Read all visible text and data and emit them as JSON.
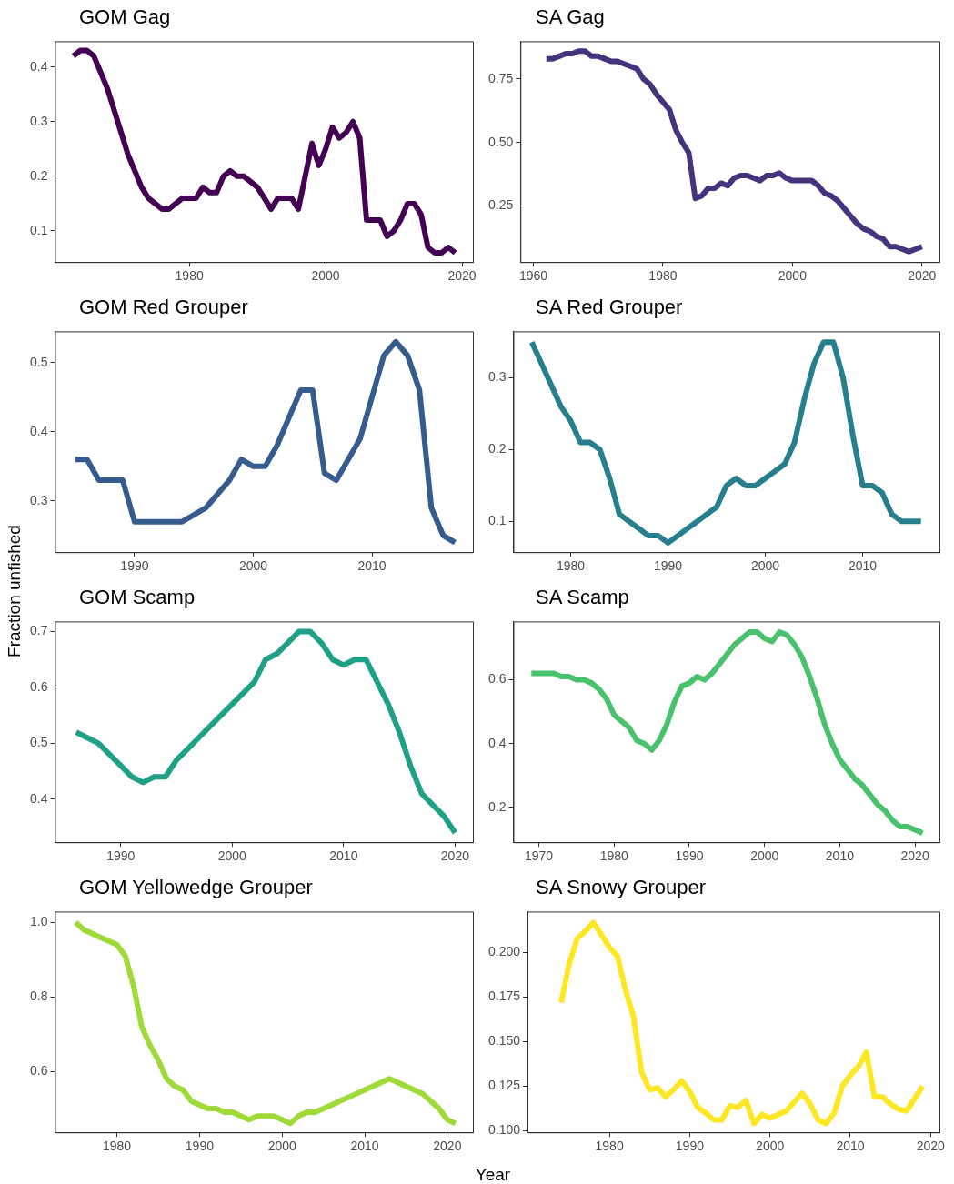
{
  "chart_data": [
    {
      "type": "line",
      "title": "GOM Gag",
      "x": [
        1963,
        1964,
        1965,
        1966,
        1967,
        1968,
        1969,
        1970,
        1971,
        1972,
        1973,
        1974,
        1975,
        1976,
        1977,
        1978,
        1979,
        1980,
        1981,
        1982,
        1983,
        1984,
        1985,
        1986,
        1987,
        1988,
        1989,
        1990,
        1991,
        1992,
        1993,
        1994,
        1995,
        1996,
        1997,
        1998,
        1999,
        2000,
        2001,
        2002,
        2003,
        2004,
        2005,
        2006,
        2007,
        2008,
        2009,
        2010,
        2011,
        2012,
        2013,
        2014,
        2015,
        2016,
        2017,
        2018,
        2019
      ],
      "series": [
        {
          "color": "#440154",
          "values": [
            0.42,
            0.43,
            0.43,
            0.42,
            0.39,
            0.36,
            0.32,
            0.28,
            0.24,
            0.21,
            0.18,
            0.16,
            0.15,
            0.14,
            0.14,
            0.15,
            0.16,
            0.16,
            0.16,
            0.18,
            0.17,
            0.17,
            0.2,
            0.21,
            0.2,
            0.2,
            0.19,
            0.18,
            0.16,
            0.14,
            0.16,
            0.16,
            0.16,
            0.14,
            0.2,
            0.26,
            0.22,
            0.25,
            0.29,
            0.27,
            0.28,
            0.3,
            0.27,
            0.12,
            0.12,
            0.12,
            0.09,
            0.1,
            0.12,
            0.15,
            0.15,
            0.13,
            0.07,
            0.06,
            0.06,
            0.07,
            0.06
          ]
        }
      ],
      "xlim": [
        1960.3,
        2021.6
      ],
      "xticks": [
        1980,
        2000,
        2020
      ],
      "ylim": [
        0.043,
        0.447
      ],
      "yticks": [
        0.1,
        0.2,
        0.3,
        0.4
      ],
      "grid": false,
      "legend": false
    },
    {
      "type": "line",
      "title": "SA Gag",
      "x": [
        1962,
        1963,
        1964,
        1965,
        1966,
        1967,
        1968,
        1969,
        1970,
        1971,
        1972,
        1973,
        1974,
        1975,
        1976,
        1977,
        1978,
        1979,
        1980,
        1981,
        1982,
        1983,
        1984,
        1985,
        1986,
        1987,
        1988,
        1989,
        1990,
        1991,
        1992,
        1993,
        1994,
        1995,
        1996,
        1997,
        1998,
        1999,
        2000,
        2001,
        2002,
        2003,
        2004,
        2005,
        2006,
        2007,
        2008,
        2009,
        2010,
        2011,
        2012,
        2013,
        2014,
        2015,
        2016,
        2017,
        2018,
        2019,
        2020
      ],
      "series": [
        {
          "color": "#46337e",
          "values": [
            0.83,
            0.83,
            0.84,
            0.85,
            0.85,
            0.86,
            0.86,
            0.84,
            0.84,
            0.83,
            0.82,
            0.82,
            0.81,
            0.8,
            0.79,
            0.75,
            0.73,
            0.69,
            0.66,
            0.63,
            0.55,
            0.5,
            0.46,
            0.28,
            0.29,
            0.32,
            0.32,
            0.34,
            0.33,
            0.36,
            0.37,
            0.37,
            0.36,
            0.35,
            0.37,
            0.37,
            0.38,
            0.36,
            0.35,
            0.35,
            0.35,
            0.35,
            0.33,
            0.3,
            0.29,
            0.27,
            0.24,
            0.21,
            0.18,
            0.16,
            0.15,
            0.13,
            0.12,
            0.09,
            0.09,
            0.08,
            0.07,
            0.08,
            0.09
          ]
        }
      ],
      "xlim": [
        1958,
        2022.7
      ],
      "xticks": [
        1960,
        1980,
        2000,
        2020
      ],
      "ylim": [
        0.029,
        0.899
      ],
      "yticks": [
        0.25,
        {
          "value": 0.5,
          "label": "0.50"
        },
        0.75
      ],
      "grid": false,
      "legend": false
    },
    {
      "type": "line",
      "title": "GOM Red Grouper",
      "x": [
        1985,
        1986,
        1987,
        1988,
        1989,
        1990,
        1991,
        1992,
        1993,
        1994,
        1995,
        1996,
        1997,
        1998,
        1999,
        2000,
        2001,
        2002,
        2003,
        2004,
        2005,
        2006,
        2007,
        2008,
        2009,
        2010,
        2011,
        2012,
        2013,
        2014,
        2015,
        2016,
        2017
      ],
      "series": [
        {
          "color": "#365c8d",
          "values": [
            0.36,
            0.36,
            0.33,
            0.33,
            0.33,
            0.27,
            0.27,
            0.27,
            0.27,
            0.27,
            0.28,
            0.29,
            0.31,
            0.33,
            0.36,
            0.35,
            0.35,
            0.38,
            0.42,
            0.46,
            0.46,
            0.34,
            0.33,
            0.36,
            0.39,
            0.45,
            0.51,
            0.53,
            0.51,
            0.46,
            0.29,
            0.25,
            0.24
          ]
        }
      ],
      "xlim": [
        1983.3,
        2018.5
      ],
      "xticks": [
        1990,
        2000,
        2010
      ],
      "ylim": [
        0.226,
        0.545
      ],
      "yticks": [
        0.3,
        0.4,
        0.5
      ],
      "grid": false,
      "legend": false
    },
    {
      "type": "line",
      "title": "SA Red Grouper",
      "x": [
        1976,
        1977,
        1978,
        1979,
        1980,
        1981,
        1982,
        1983,
        1984,
        1985,
        1986,
        1987,
        1988,
        1989,
        1990,
        1991,
        1992,
        1993,
        1994,
        1995,
        1996,
        1997,
        1998,
        1999,
        2000,
        2001,
        2002,
        2003,
        2004,
        2005,
        2006,
        2007,
        2008,
        2009,
        2010,
        2011,
        2012,
        2013,
        2014,
        2015,
        2016
      ],
      "series": [
        {
          "color": "#277f8e",
          "values": [
            0.35,
            0.32,
            0.29,
            0.26,
            0.24,
            0.21,
            0.21,
            0.2,
            0.16,
            0.11,
            0.1,
            0.09,
            0.08,
            0.08,
            0.07,
            0.08,
            0.09,
            0.1,
            0.11,
            0.12,
            0.15,
            0.16,
            0.15,
            0.15,
            0.16,
            0.17,
            0.18,
            0.21,
            0.27,
            0.32,
            0.35,
            0.35,
            0.3,
            0.22,
            0.15,
            0.15,
            0.14,
            0.11,
            0.1,
            0.1,
            0.1
          ]
        }
      ],
      "xlim": [
        1974.1,
        2017.9
      ],
      "xticks": [
        1980,
        1990,
        2000,
        2010
      ],
      "ylim": [
        0.057,
        0.365
      ],
      "yticks": [
        0.1,
        0.2,
        0.3
      ],
      "grid": false,
      "legend": false
    },
    {
      "type": "line",
      "title": "GOM Scamp",
      "ylabel": "Fraction unfished",
      "x": [
        1986,
        1987,
        1988,
        1989,
        1990,
        1991,
        1992,
        1993,
        1994,
        1995,
        1996,
        1997,
        1998,
        1999,
        2000,
        2001,
        2002,
        2003,
        2004,
        2005,
        2006,
        2007,
        2008,
        2009,
        2010,
        2011,
        2012,
        2013,
        2014,
        2015,
        2016,
        2017,
        2018,
        2019,
        2020
      ],
      "series": [
        {
          "color": "#1fa187",
          "values": [
            0.52,
            0.51,
            0.5,
            0.48,
            0.46,
            0.44,
            0.43,
            0.44,
            0.44,
            0.47,
            0.49,
            0.51,
            0.53,
            0.55,
            0.57,
            0.59,
            0.61,
            0.65,
            0.66,
            0.68,
            0.7,
            0.7,
            0.68,
            0.65,
            0.64,
            0.65,
            0.65,
            0.61,
            0.57,
            0.52,
            0.46,
            0.41,
            0.39,
            0.37,
            0.34
          ]
        }
      ],
      "xlim": [
        1984.1,
        2021.6
      ],
      "xticks": [
        1990,
        2000,
        2010,
        2020
      ],
      "ylim": [
        0.323,
        0.718
      ],
      "yticks": [
        0.4,
        0.5,
        0.6,
        0.7
      ],
      "grid": false,
      "legend": false
    },
    {
      "type": "line",
      "title": "SA Scamp",
      "x": [
        1969,
        1970,
        1971,
        1972,
        1973,
        1974,
        1975,
        1976,
        1977,
        1978,
        1979,
        1980,
        1981,
        1982,
        1983,
        1984,
        1985,
        1986,
        1987,
        1988,
        1989,
        1990,
        1991,
        1992,
        1993,
        1994,
        1995,
        1996,
        1997,
        1998,
        1999,
        2000,
        2001,
        2002,
        2003,
        2004,
        2005,
        2006,
        2007,
        2008,
        2009,
        2010,
        2011,
        2012,
        2013,
        2014,
        2015,
        2016,
        2017,
        2018,
        2019,
        2020,
        2021
      ],
      "series": [
        {
          "color": "#4ac16d",
          "values": [
            0.62,
            0.62,
            0.62,
            0.62,
            0.61,
            0.61,
            0.6,
            0.6,
            0.59,
            0.57,
            0.54,
            0.49,
            0.47,
            0.45,
            0.41,
            0.4,
            0.38,
            0.41,
            0.46,
            0.53,
            0.58,
            0.59,
            0.61,
            0.6,
            0.62,
            0.65,
            0.68,
            0.71,
            0.73,
            0.75,
            0.75,
            0.73,
            0.72,
            0.75,
            0.74,
            0.71,
            0.67,
            0.61,
            0.54,
            0.46,
            0.4,
            0.35,
            0.32,
            0.29,
            0.27,
            0.24,
            0.21,
            0.19,
            0.16,
            0.14,
            0.14,
            0.13,
            0.12
          ]
        }
      ],
      "xlim": [
        1966.6,
        2023.25
      ],
      "xticks": [
        1970,
        1980,
        1990,
        2000,
        2010,
        2020
      ],
      "ylim": [
        0.091,
        0.783
      ],
      "yticks": [
        0.2,
        0.4,
        0.6
      ],
      "grid": false,
      "legend": false
    },
    {
      "type": "line",
      "title": "GOM Yellowedge Grouper",
      "x": [
        1975,
        1976,
        1977,
        1978,
        1979,
        1980,
        1981,
        1982,
        1983,
        1984,
        1985,
        1986,
        1987,
        1988,
        1989,
        1990,
        1991,
        1992,
        1993,
        1994,
        1995,
        1996,
        1997,
        1998,
        1999,
        2000,
        2001,
        2002,
        2003,
        2004,
        2005,
        2006,
        2007,
        2008,
        2009,
        2010,
        2011,
        2012,
        2013,
        2014,
        2015,
        2016,
        2017,
        2018,
        2019,
        2020,
        2021
      ],
      "series": [
        {
          "color": "#a0da39",
          "values": [
            1.0,
            0.98,
            0.97,
            0.96,
            0.95,
            0.94,
            0.91,
            0.83,
            0.72,
            0.67,
            0.63,
            0.58,
            0.56,
            0.55,
            0.52,
            0.51,
            0.5,
            0.5,
            0.49,
            0.49,
            0.48,
            0.47,
            0.48,
            0.48,
            0.48,
            0.47,
            0.46,
            0.48,
            0.49,
            0.49,
            0.5,
            0.51,
            0.52,
            0.53,
            0.54,
            0.55,
            0.56,
            0.57,
            0.58,
            0.57,
            0.56,
            0.55,
            0.54,
            0.52,
            0.5,
            0.47,
            0.46
          ]
        }
      ],
      "xlim": [
        1972.5,
        2023.1
      ],
      "xticks": [
        1980,
        1990,
        2000,
        2010,
        2020
      ],
      "ylim": [
        0.436,
        1.029
      ],
      "yticks": [
        0.6,
        0.8,
        {
          "value": 1,
          "label": "1.0"
        }
      ],
      "grid": false,
      "legend": false
    },
    {
      "type": "line",
      "title": "SA Snowy Grouper",
      "xlabel": "Year",
      "x": [
        1974,
        1975,
        1976,
        1977,
        1978,
        1979,
        1980,
        1981,
        1982,
        1983,
        1984,
        1985,
        1986,
        1987,
        1988,
        1989,
        1990,
        1991,
        1992,
        1993,
        1994,
        1995,
        1996,
        1997,
        1998,
        1999,
        2000,
        2001,
        2002,
        2003,
        2004,
        2005,
        2006,
        2007,
        2008,
        2009,
        2010,
        2011,
        2012,
        2013,
        2014,
        2015,
        2016,
        2017,
        2018,
        2019
      ],
      "series": [
        {
          "color": "#fde725",
          "values": [
            0.172,
            0.194,
            0.208,
            0.212,
            0.217,
            0.21,
            0.203,
            0.198,
            0.179,
            0.164,
            0.133,
            0.123,
            0.124,
            0.119,
            0.123,
            0.128,
            0.122,
            0.113,
            0.11,
            0.106,
            0.106,
            0.114,
            0.113,
            0.117,
            0.104,
            0.109,
            0.107,
            0.109,
            0.111,
            0.116,
            0.121,
            0.115,
            0.106,
            0.104,
            0.11,
            0.125,
            0.131,
            0.136,
            0.144,
            0.119,
            0.119,
            0.115,
            0.112,
            0.111,
            0.118,
            0.125
          ]
        }
      ],
      "xlim": [
        1969.8,
        2021.1
      ],
      "xticks": [
        1980,
        1990,
        2000,
        2010,
        2020
      ],
      "ylim": [
        0.099,
        0.2231
      ],
      "yticks": [
        {
          "value": 0.1,
          "label": "0.100"
        },
        0.125,
        {
          "value": 0.15,
          "label": "0.150"
        },
        0.175,
        {
          "value": 0.2,
          "label": "0.200"
        }
      ],
      "grid": false,
      "legend": false
    }
  ]
}
